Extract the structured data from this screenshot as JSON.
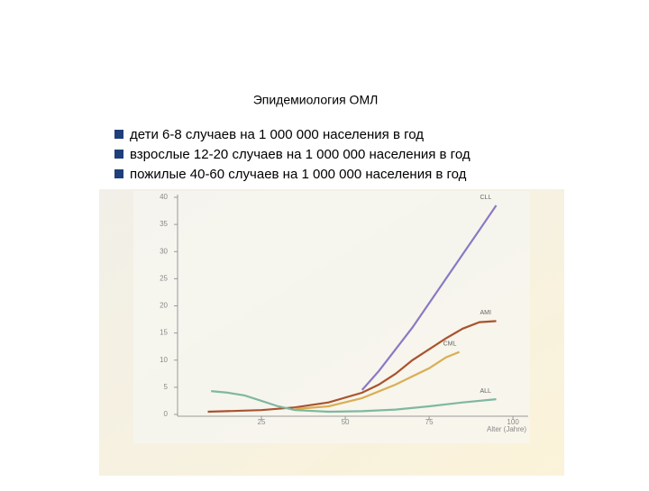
{
  "header": {
    "title": "Эпидемиология ОМЛ"
  },
  "bullets": [
    "дети 6-8 случаев на 1 000 000 населения в год",
    "взрослые 12-20 случаев на 1 000 000 населения в год",
    "пожилые 40-60 случаев на 1 000 000 населения в год"
  ],
  "chart_data": {
    "type": "line",
    "x_label": "Alter (Jahre)",
    "xlim": [
      0,
      104
    ],
    "ylim": [
      0,
      40
    ],
    "xticks": [
      25,
      50,
      75,
      100
    ],
    "yticks": [
      0,
      5,
      10,
      15,
      20,
      25,
      30,
      35,
      40
    ],
    "series": [
      {
        "name": "CLL",
        "color": "#8a79c4",
        "x": [
          55,
          60,
          65,
          70,
          75,
          80,
          85,
          90,
          95
        ],
        "values": [
          4.5,
          8,
          12,
          16,
          20.5,
          25,
          29.5,
          34,
          38.5
        ]
      },
      {
        "name": "AMI",
        "color": "#a9532f",
        "x": [
          9,
          25,
          35,
          45,
          55,
          60,
          65,
          70,
          75,
          80,
          85,
          90,
          95
        ],
        "values": [
          0.5,
          0.8,
          1.3,
          2.2,
          4,
          5.5,
          7.5,
          10,
          12,
          14,
          15.8,
          17,
          17.2
        ]
      },
      {
        "name": "CML",
        "color": "#d9ae55",
        "x": [
          35,
          45,
          55,
          65,
          70,
          75,
          80,
          84
        ],
        "values": [
          1,
          1.5,
          3,
          5.5,
          7,
          8.5,
          10.5,
          11.5
        ]
      },
      {
        "name": "ALL",
        "color": "#7fb8a0",
        "x": [
          10,
          15,
          20,
          25,
          30,
          35,
          45,
          55,
          65,
          75,
          85,
          95
        ],
        "values": [
          4.3,
          4,
          3.5,
          2.5,
          1.5,
          0.8,
          0.5,
          0.6,
          0.9,
          1.5,
          2.2,
          2.8
        ]
      }
    ]
  }
}
